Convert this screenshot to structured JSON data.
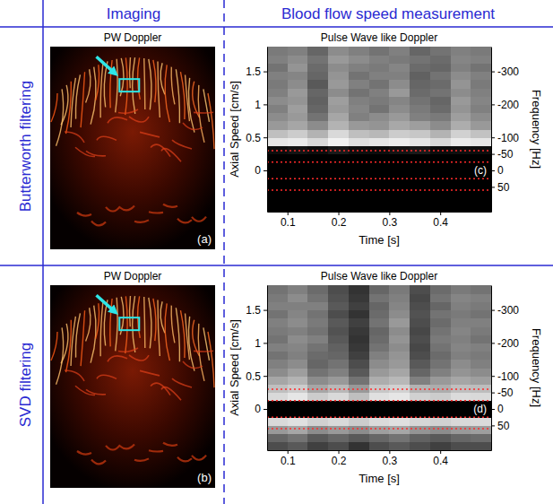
{
  "header": {
    "columns": [
      "Imaging",
      "Blood flow speed measurement"
    ],
    "rows": [
      "Butterworth filtering",
      "SVD filtering"
    ]
  },
  "chart_data": [
    {
      "type": "image",
      "title": "PW Doppler",
      "label": "(a)"
    },
    {
      "type": "heatmap",
      "title": "Pulse Wave like Doppler",
      "label": "(c)",
      "x_label": "Time [s]",
      "y_label": "Axial Speed [cm/s]",
      "y2_label": "Frequency [Hz]",
      "xlim": [
        0.06,
        0.5
      ],
      "xticks": [
        0.1,
        0.2,
        0.3,
        0.4
      ],
      "ylim": [
        -0.625,
        1.875
      ],
      "yticks": [
        0,
        0.5,
        1,
        1.5
      ],
      "y2lim": [
        125,
        -375
      ],
      "y2ticks": [
        -300,
        -200,
        -100,
        -50,
        0,
        50
      ],
      "x_edges": [
        0.06,
        0.1,
        0.14,
        0.18,
        0.22,
        0.26,
        0.3,
        0.34,
        0.38,
        0.42,
        0.46,
        0.5
      ],
      "y_edges": [
        -0.625,
        -0.5,
        -0.375,
        -0.25,
        -0.125,
        0,
        0.125,
        0.25,
        0.375,
        0.5,
        0.625,
        0.75,
        0.875,
        1,
        1.125,
        1.25,
        1.375,
        1.5,
        1.625,
        1.75,
        1.875
      ],
      "clim": [
        0,
        1
      ],
      "cells": [
        [
          0,
          0,
          0,
          0,
          0,
          0,
          0,
          0,
          0,
          0,
          0
        ],
        [
          0,
          0,
          0,
          0,
          0,
          0,
          0,
          0,
          0,
          0,
          0
        ],
        [
          0,
          0,
          0,
          0,
          0,
          0,
          0,
          0,
          0,
          0,
          0
        ],
        [
          0,
          0,
          0,
          0,
          0,
          0,
          0,
          0,
          0,
          0,
          0
        ],
        [
          0,
          0,
          0,
          0,
          0,
          0,
          0,
          0,
          0,
          0,
          0
        ],
        [
          0,
          0,
          0,
          0,
          0,
          0,
          0,
          0,
          0,
          0,
          0
        ],
        [
          0,
          0,
          0,
          0,
          0,
          0,
          0,
          0,
          0,
          0,
          0
        ],
        [
          0.05,
          0.08,
          0.05,
          0.1,
          0.06,
          0.05,
          0.08,
          0.1,
          0.05,
          0.06,
          0.05
        ],
        [
          0.9,
          0.92,
          0.85,
          0.95,
          0.88,
          0.9,
          0.93,
          0.9,
          0.85,
          0.92,
          0.9
        ],
        [
          0.75,
          0.8,
          0.7,
          0.85,
          0.75,
          0.72,
          0.8,
          0.78,
          0.7,
          0.82,
          0.76
        ],
        [
          0.6,
          0.65,
          0.55,
          0.7,
          0.6,
          0.58,
          0.66,
          0.62,
          0.55,
          0.68,
          0.6
        ],
        [
          0.55,
          0.6,
          0.45,
          0.65,
          0.5,
          0.55,
          0.6,
          0.5,
          0.48,
          0.62,
          0.55
        ],
        [
          0.5,
          0.62,
          0.4,
          0.6,
          0.52,
          0.45,
          0.55,
          0.48,
          0.42,
          0.58,
          0.5
        ],
        [
          0.55,
          0.58,
          0.38,
          0.62,
          0.5,
          0.48,
          0.52,
          0.45,
          0.4,
          0.6,
          0.52
        ],
        [
          0.5,
          0.6,
          0.4,
          0.55,
          0.45,
          0.5,
          0.6,
          0.42,
          0.45,
          0.55,
          0.5
        ],
        [
          0.48,
          0.55,
          0.35,
          0.6,
          0.5,
          0.45,
          0.55,
          0.4,
          0.42,
          0.58,
          0.48
        ],
        [
          0.5,
          0.52,
          0.4,
          0.58,
          0.45,
          0.5,
          0.5,
          0.38,
          0.45,
          0.55,
          0.5
        ],
        [
          0.45,
          0.58,
          0.42,
          0.55,
          0.5,
          0.48,
          0.52,
          0.42,
          0.4,
          0.5,
          0.45
        ],
        [
          0.5,
          0.55,
          0.45,
          0.6,
          0.55,
          0.5,
          0.48,
          0.45,
          0.42,
          0.52,
          0.5
        ],
        [
          0.48,
          0.5,
          0.4,
          0.55,
          0.5,
          0.45,
          0.5,
          0.4,
          0.45,
          0.5,
          0.48
        ]
      ],
      "threshold_lines": [
        -0.3,
        -0.125,
        0.125,
        0.3
      ],
      "line_style": "dotted"
    },
    {
      "type": "image",
      "title": "PW Doppler",
      "label": "(b)"
    },
    {
      "type": "heatmap",
      "title": "Pulse Wave like Doppler",
      "label": "(d)",
      "x_label": "Time [s]",
      "y_label": "Axial Speed [cm/s]",
      "y2_label": "Frequency [Hz]",
      "xlim": [
        0.06,
        0.5
      ],
      "xticks": [
        0.1,
        0.2,
        0.3,
        0.4
      ],
      "ylim": [
        -0.625,
        1.875
      ],
      "yticks": [
        0,
        0.5,
        1,
        1.5
      ],
      "y2lim": [
        125,
        -375
      ],
      "y2ticks": [
        -300,
        -200,
        -100,
        -50,
        0,
        50
      ],
      "x_edges": [
        0.06,
        0.1,
        0.14,
        0.18,
        0.22,
        0.26,
        0.3,
        0.34,
        0.38,
        0.42,
        0.46,
        0.5
      ],
      "y_edges": [
        -0.625,
        -0.5,
        -0.375,
        -0.25,
        -0.125,
        0,
        0.125,
        0.25,
        0.375,
        0.5,
        0.625,
        0.75,
        0.875,
        1,
        1.125,
        1.25,
        1.375,
        1.5,
        1.625,
        1.75,
        1.875
      ],
      "clim": [
        0,
        1
      ],
      "cells": [
        [
          0.3,
          0.35,
          0.25,
          0.3,
          0.2,
          0.3,
          0.35,
          0.3,
          0.25,
          0.3,
          0.3
        ],
        [
          0.4,
          0.45,
          0.35,
          0.4,
          0.35,
          0.4,
          0.45,
          0.38,
          0.35,
          0.4,
          0.42
        ],
        [
          0.6,
          0.65,
          0.55,
          0.6,
          0.55,
          0.62,
          0.65,
          0.58,
          0.55,
          0.6,
          0.62
        ],
        [
          0.85,
          0.88,
          0.82,
          0.85,
          0.8,
          0.86,
          0.88,
          0.84,
          0.82,
          0.85,
          0.86
        ],
        [
          0,
          0,
          0,
          0,
          0,
          0,
          0,
          0,
          0,
          0,
          0
        ],
        [
          0,
          0,
          0,
          0,
          0,
          0,
          0,
          0,
          0,
          0,
          0
        ],
        [
          0.85,
          0.9,
          0.8,
          0.85,
          0.75,
          0.88,
          0.9,
          0.82,
          0.8,
          0.86,
          0.85
        ],
        [
          0.75,
          0.8,
          0.65,
          0.72,
          0.6,
          0.78,
          0.82,
          0.7,
          0.68,
          0.75,
          0.74
        ],
        [
          0.65,
          0.7,
          0.55,
          0.6,
          0.45,
          0.68,
          0.72,
          0.5,
          0.6,
          0.65,
          0.62
        ],
        [
          0.55,
          0.62,
          0.45,
          0.5,
          0.35,
          0.6,
          0.65,
          0.4,
          0.5,
          0.58,
          0.55
        ],
        [
          0.5,
          0.55,
          0.4,
          0.45,
          0.3,
          0.55,
          0.6,
          0.35,
          0.45,
          0.55,
          0.5
        ],
        [
          0.45,
          0.5,
          0.42,
          0.4,
          0.25,
          0.5,
          0.58,
          0.3,
          0.42,
          0.5,
          0.48
        ],
        [
          0.5,
          0.52,
          0.45,
          0.38,
          0.22,
          0.45,
          0.55,
          0.28,
          0.45,
          0.52,
          0.5
        ],
        [
          0.45,
          0.55,
          0.5,
          0.35,
          0.2,
          0.42,
          0.58,
          0.3,
          0.48,
          0.5,
          0.45
        ],
        [
          0.48,
          0.5,
          0.45,
          0.32,
          0.22,
          0.4,
          0.55,
          0.28,
          0.45,
          0.52,
          0.48
        ],
        [
          0.5,
          0.55,
          0.48,
          0.35,
          0.25,
          0.45,
          0.6,
          0.3,
          0.42,
          0.5,
          0.5
        ],
        [
          0.45,
          0.52,
          0.45,
          0.3,
          0.2,
          0.42,
          0.55,
          0.32,
          0.45,
          0.48,
          0.45
        ],
        [
          0.5,
          0.5,
          0.5,
          0.35,
          0.25,
          0.4,
          0.52,
          0.3,
          0.4,
          0.5,
          0.48
        ],
        [
          0.48,
          0.55,
          0.45,
          0.32,
          0.22,
          0.45,
          0.5,
          0.28,
          0.45,
          0.52,
          0.5
        ],
        [
          0.45,
          0.5,
          0.42,
          0.3,
          0.2,
          0.4,
          0.48,
          0.3,
          0.42,
          0.48,
          0.45
        ]
      ],
      "threshold_lines": [
        -0.3,
        -0.125,
        0.125,
        0.3
      ],
      "line_style": "dotted"
    }
  ]
}
